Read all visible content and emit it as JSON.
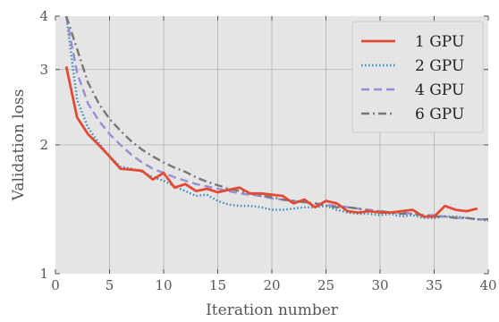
{
  "chart_data": {
    "type": "line",
    "title": "",
    "xlabel": "Iteration number",
    "ylabel": "Validation loss",
    "xlim": [
      0,
      40
    ],
    "ylim": [
      1,
      4
    ],
    "yscale": "log",
    "grid": true,
    "legend_position": "top-right",
    "x_ticks": [
      0,
      5,
      10,
      15,
      20,
      25,
      30,
      35,
      40
    ],
    "x_tick_labels": [
      "0",
      "5",
      "10",
      "15",
      "20",
      "25",
      "30",
      "35",
      "40"
    ],
    "y_ticks": [
      1,
      2,
      3,
      4
    ],
    "y_tick_labels": [
      "1",
      "2",
      "3",
      "4"
    ],
    "series": [
      {
        "name": "1 GPU",
        "color": "#e24a33",
        "style": "solid",
        "x": [
          1,
          2,
          3,
          4,
          5,
          6,
          7,
          8,
          9,
          10,
          11,
          12,
          13,
          14,
          15,
          16,
          17,
          18,
          19,
          20,
          21,
          22,
          23,
          24,
          25,
          26,
          27,
          28,
          29,
          30,
          31,
          32,
          33,
          34,
          35,
          36,
          37,
          38,
          39
        ],
        "y": [
          3.05,
          2.32,
          2.12,
          2.0,
          1.88,
          1.76,
          1.75,
          1.74,
          1.66,
          1.72,
          1.59,
          1.62,
          1.56,
          1.58,
          1.55,
          1.57,
          1.59,
          1.54,
          1.54,
          1.53,
          1.52,
          1.46,
          1.49,
          1.43,
          1.48,
          1.46,
          1.4,
          1.39,
          1.4,
          1.39,
          1.39,
          1.4,
          1.41,
          1.36,
          1.36,
          1.44,
          1.41,
          1.4,
          1.42
        ]
      },
      {
        "name": "2 GPU",
        "color": "#348abd",
        "style": "dotted",
        "x": [
          1,
          2,
          3,
          4,
          5,
          6,
          7,
          8,
          9,
          10,
          11,
          12,
          13,
          14,
          15,
          16,
          17,
          18,
          19,
          20,
          21,
          22,
          23,
          24,
          25,
          26,
          27,
          28,
          29,
          30,
          31,
          32,
          33,
          34,
          35,
          36,
          37,
          38,
          39,
          40
        ],
        "y": [
          4.0,
          2.55,
          2.2,
          2.02,
          1.88,
          1.78,
          1.76,
          1.73,
          1.68,
          1.65,
          1.6,
          1.56,
          1.52,
          1.53,
          1.48,
          1.45,
          1.44,
          1.44,
          1.43,
          1.41,
          1.41,
          1.42,
          1.43,
          1.43,
          1.44,
          1.41,
          1.39,
          1.38,
          1.38,
          1.37,
          1.38,
          1.36,
          1.37,
          1.35,
          1.35,
          1.36,
          1.36,
          1.35,
          1.34,
          1.33
        ]
      },
      {
        "name": "4 GPU",
        "color": "#988ed5",
        "style": "dashed",
        "x": [
          1,
          2,
          3,
          4,
          5,
          6,
          7,
          8,
          9,
          10,
          11,
          12,
          13,
          14,
          15,
          16,
          17,
          18,
          19,
          20,
          21,
          22,
          23,
          24,
          25,
          26,
          27,
          28,
          29,
          30,
          31,
          32,
          33,
          34,
          35,
          36,
          37,
          38,
          39,
          40
        ],
        "y": [
          4.0,
          2.95,
          2.5,
          2.28,
          2.12,
          2.0,
          1.9,
          1.82,
          1.76,
          1.72,
          1.68,
          1.65,
          1.62,
          1.6,
          1.58,
          1.56,
          1.54,
          1.53,
          1.52,
          1.5,
          1.49,
          1.48,
          1.47,
          1.46,
          1.45,
          1.44,
          1.43,
          1.42,
          1.41,
          1.4,
          1.39,
          1.39,
          1.38,
          1.37,
          1.37,
          1.36,
          1.35,
          1.35,
          1.34,
          1.34
        ]
      },
      {
        "name": "6 GPU",
        "color": "#777777",
        "style": "dashdot",
        "x": [
          1,
          2,
          3,
          4,
          5,
          6,
          7,
          8,
          9,
          10,
          11,
          12,
          13,
          14,
          15,
          16,
          17,
          18,
          19,
          20,
          21,
          22,
          23,
          24,
          25,
          26,
          27,
          28,
          29,
          30,
          31,
          32,
          33,
          34,
          35,
          36,
          37,
          38,
          39,
          40
        ],
        "y": [
          4.0,
          3.35,
          2.8,
          2.5,
          2.3,
          2.16,
          2.04,
          1.95,
          1.88,
          1.82,
          1.77,
          1.73,
          1.68,
          1.64,
          1.61,
          1.58,
          1.56,
          1.54,
          1.52,
          1.51,
          1.49,
          1.48,
          1.47,
          1.46,
          1.44,
          1.43,
          1.43,
          1.42,
          1.4,
          1.4,
          1.39,
          1.38,
          1.38,
          1.37,
          1.36,
          1.36,
          1.35,
          1.35,
          1.34,
          1.34
        ]
      }
    ]
  }
}
